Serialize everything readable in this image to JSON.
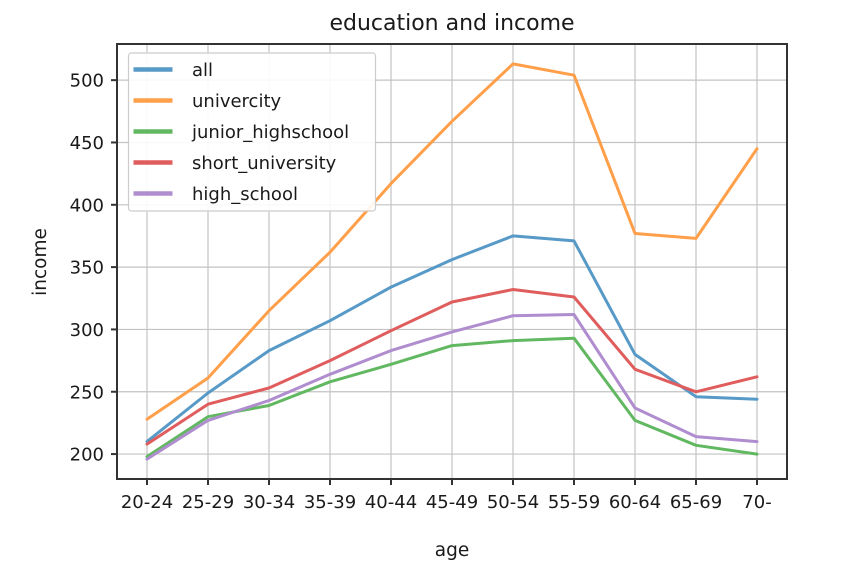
{
  "chart_data": {
    "type": "line",
    "title": "education and income",
    "xlabel": "age",
    "ylabel": "income",
    "categories": [
      "20-24",
      "25-29",
      "30-34",
      "35-39",
      "40-44",
      "45-49",
      "50-54",
      "55-59",
      "60-64",
      "65-69",
      "70-"
    ],
    "series": [
      {
        "name": "all",
        "color": "#5799C7",
        "values": [
          210,
          249,
          283,
          307,
          334,
          356,
          375,
          371,
          280,
          246,
          244
        ]
      },
      {
        "name": "univercity",
        "color": "#FF9F4A",
        "values": [
          228,
          261,
          315,
          362,
          417,
          467,
          513,
          504,
          377,
          373,
          445
        ]
      },
      {
        "name": "junior_highschool",
        "color": "#61B861",
        "values": [
          198,
          230,
          239,
          258,
          272,
          287,
          291,
          293,
          227,
          207,
          200
        ]
      },
      {
        "name": "short_university",
        "color": "#E05D5E",
        "values": [
          208,
          240,
          253,
          275,
          299,
          322,
          332,
          326,
          268,
          250,
          262
        ]
      },
      {
        "name": "high_school",
        "color": "#AF8DCE",
        "values": [
          196,
          227,
          243,
          264,
          283,
          298,
          311,
          312,
          237,
          214,
          210
        ]
      }
    ],
    "yticks": [
      200,
      250,
      300,
      350,
      400,
      450,
      500
    ],
    "ylim": [
      180,
      529
    ],
    "grid": true,
    "legend_position": "upper left",
    "styles": {
      "grid_color": "#c3c3c3",
      "spine_color": "#333333",
      "text_color": "#1a1a1a",
      "legend_border_color": "#cccccc",
      "legend_bg": "rgba(255,255,255,0.9)"
    }
  }
}
